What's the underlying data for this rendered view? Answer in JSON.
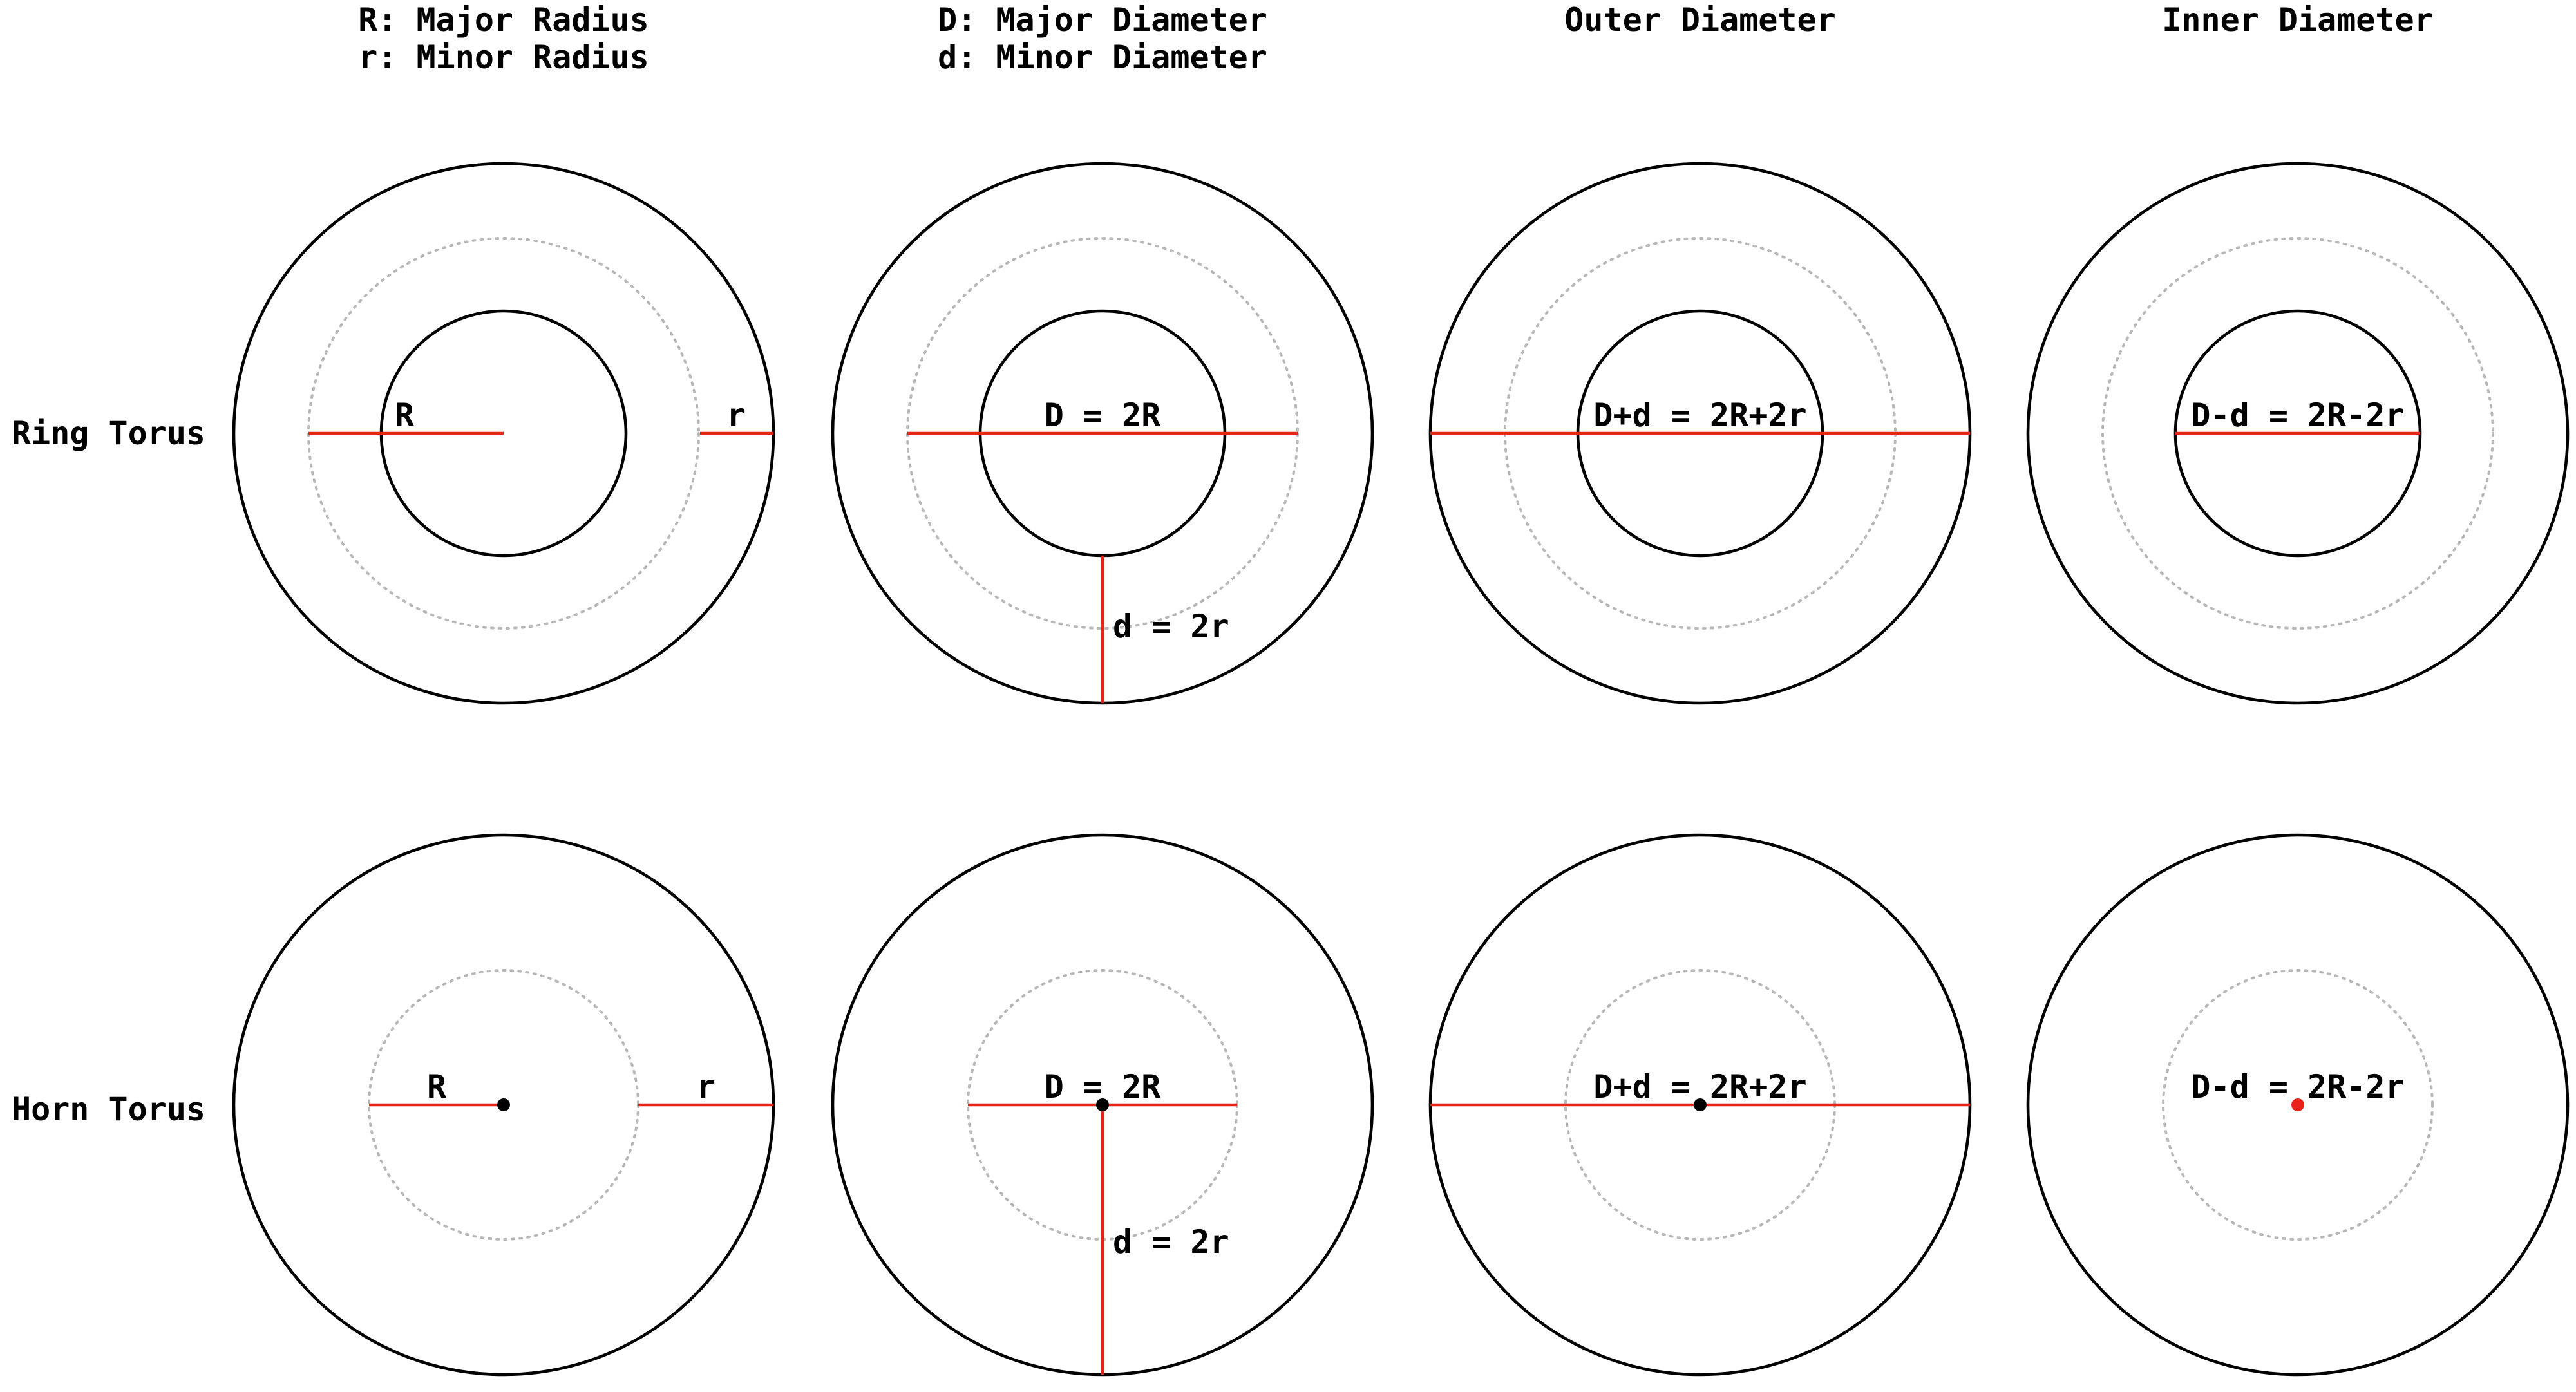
{
  "headers": {
    "col1_line1": "R: Major Radius",
    "col1_line2": "r: Minor Radius",
    "col2_line1": "D: Major Diameter",
    "col2_line2": "d: Minor Diameter",
    "col3": "Outer Diameter",
    "col4": "Inner Diameter"
  },
  "rows": {
    "ring": "Ring Torus",
    "horn": "Horn Torus"
  },
  "ring": {
    "label_R": "R",
    "label_r": "r",
    "label_D": "D = 2R",
    "label_d": "d = 2r",
    "label_outer": "D+d = 2R+2r",
    "label_inner": "D-d = 2R-2r"
  },
  "horn": {
    "label_R": "R",
    "label_r": "r",
    "label_D": "D = 2R",
    "label_d": "d = 2r",
    "label_outer": "D+d = 2R+2r",
    "label_inner": "D-d = 2R-2r"
  },
  "colors": {
    "measure_line": "#e8231a",
    "outline": "#000000",
    "guide": "#b8b8b8",
    "background": "#ffffff"
  }
}
